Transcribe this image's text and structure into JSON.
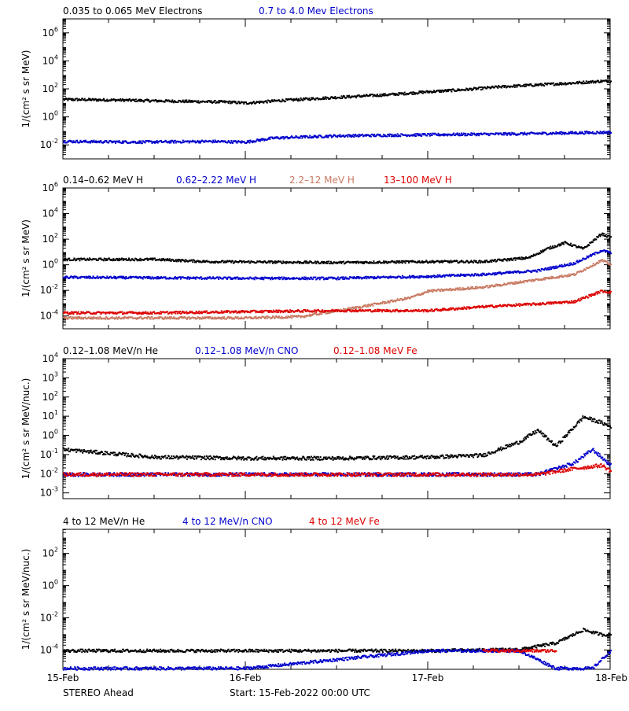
{
  "footer": {
    "mission": "STEREO Ahead",
    "start": "Start: 15-Feb-2022 00:00 UTC"
  },
  "x_axis": {
    "labels": [
      "15-Feb",
      "16-Feb",
      "17-Feb",
      "18-Feb"
    ]
  },
  "chart_data": [
    {
      "type": "scatter",
      "ylabel": "1/(cm² s sr MeV)",
      "y_scale": "log",
      "ylim_exp": [
        -3,
        7
      ],
      "tick_exps": [
        -2,
        0,
        2,
        4,
        6
      ],
      "x_range_days": [
        0,
        3
      ],
      "series": [
        {
          "name": "0.035 to 0.065 MeV Electrons",
          "color": "#000000",
          "points": [
            [
              0,
              20
            ],
            [
              0.3,
              18
            ],
            [
              0.6,
              15
            ],
            [
              0.9,
              13
            ],
            [
              1.0,
              11
            ],
            [
              1.2,
              17
            ],
            [
              1.5,
              28
            ],
            [
              1.8,
              45
            ],
            [
              2.0,
              70
            ],
            [
              2.2,
              100
            ],
            [
              2.4,
              160
            ],
            [
              2.6,
              220
            ],
            [
              2.8,
              300
            ],
            [
              2.95,
              400
            ],
            [
              3.0,
              400
            ]
          ]
        },
        {
          "name": "0.7 to 4.0 Mev Electrons",
          "color": "#0000cc",
          "points": [
            [
              0,
              0.02
            ],
            [
              0.4,
              0.018
            ],
            [
              0.8,
              0.02
            ],
            [
              1.0,
              0.018
            ],
            [
              1.15,
              0.035
            ],
            [
              1.5,
              0.05
            ],
            [
              2.0,
              0.06
            ],
            [
              2.5,
              0.07
            ],
            [
              3.0,
              0.09
            ]
          ]
        }
      ]
    },
    {
      "type": "scatter",
      "ylabel": "1/(cm² s sr MeV)",
      "y_scale": "log",
      "ylim_exp": [
        -5,
        6
      ],
      "tick_exps": [
        -4,
        -2,
        0,
        2,
        4,
        6
      ],
      "x_range_days": [
        0,
        3
      ],
      "series": [
        {
          "name": "0.14–0.62 MeV H",
          "color": "#000000",
          "points": [
            [
              0,
              3
            ],
            [
              0.5,
              3
            ],
            [
              0.8,
              2
            ],
            [
              1.5,
              1.7
            ],
            [
              2.0,
              2
            ],
            [
              2.3,
              2
            ],
            [
              2.55,
              4
            ],
            [
              2.65,
              20
            ],
            [
              2.75,
              60
            ],
            [
              2.85,
              20
            ],
            [
              2.95,
              300
            ],
            [
              3.0,
              150
            ]
          ]
        },
        {
          "name": "0.62–2.22 MeV H",
          "color": "#0000cc",
          "points": [
            [
              0,
              0.12
            ],
            [
              0.5,
              0.11
            ],
            [
              1.0,
              0.1
            ],
            [
              1.5,
              0.1
            ],
            [
              2.0,
              0.14
            ],
            [
              2.3,
              0.2
            ],
            [
              2.6,
              0.4
            ],
            [
              2.8,
              1.5
            ],
            [
              2.95,
              15
            ],
            [
              3.0,
              10
            ]
          ]
        },
        {
          "name": "2.2–12 MeV H",
          "color": "#c87a63",
          "points": [
            [
              0,
              8e-05
            ],
            [
              0.5,
              8e-05
            ],
            [
              1.0,
              8e-05
            ],
            [
              1.3,
              0.0001
            ],
            [
              1.6,
              0.0005
            ],
            [
              1.9,
              0.003
            ],
            [
              2.0,
              0.01
            ],
            [
              2.3,
              0.02
            ],
            [
              2.6,
              0.08
            ],
            [
              2.8,
              0.2
            ],
            [
              2.95,
              2.5
            ],
            [
              3.0,
              1.2
            ]
          ]
        },
        {
          "name": "13–100 MeV H",
          "color": "#dd0000",
          "points": [
            [
              0,
              0.0002
            ],
            [
              0.5,
              0.0002
            ],
            [
              1.0,
              0.00025
            ],
            [
              1.5,
              0.0003
            ],
            [
              2.0,
              0.0003
            ],
            [
              2.3,
              0.0006
            ],
            [
              2.6,
              0.001
            ],
            [
              2.8,
              0.0015
            ],
            [
              2.95,
              0.01
            ],
            [
              3.0,
              0.008
            ]
          ]
        }
      ]
    },
    {
      "type": "scatter",
      "ylabel": "1/(cm² s sr MeV/nuc.)",
      "y_scale": "log",
      "ylim_exp": [
        -3.3,
        4
      ],
      "tick_exps": [
        -3,
        -2,
        -1,
        0,
        1,
        2,
        3,
        4
      ],
      "x_range_days": [
        0,
        3
      ],
      "series": [
        {
          "name": "0.12–1.08 MeV/n He",
          "color": "#000000",
          "points": [
            [
              0,
              0.2
            ],
            [
              0.5,
              0.08
            ],
            [
              1.0,
              0.07
            ],
            [
              1.5,
              0.07
            ],
            [
              2.0,
              0.08
            ],
            [
              2.3,
              0.1
            ],
            [
              2.5,
              0.5
            ],
            [
              2.6,
              2
            ],
            [
              2.7,
              0.3
            ],
            [
              2.85,
              10
            ],
            [
              2.95,
              5
            ],
            [
              3.0,
              3
            ]
          ]
        },
        {
          "name": "0.12–1.08 MeV/n CNO",
          "color": "#0000cc",
          "points": [
            [
              0,
              0.01
            ],
            [
              1.0,
              0.01
            ],
            [
              2.0,
              0.01
            ],
            [
              2.6,
              0.01
            ],
            [
              2.8,
              0.04
            ],
            [
              2.9,
              0.2
            ],
            [
              3.0,
              0.03
            ]
          ]
        },
        {
          "name": "0.12–1.08 MeV Fe",
          "color": "#dd0000",
          "points": [
            [
              0,
              0.01
            ],
            [
              1.0,
              0.01
            ],
            [
              2.0,
              0.01
            ],
            [
              2.6,
              0.01
            ],
            [
              2.8,
              0.02
            ],
            [
              2.95,
              0.03
            ],
            [
              3.0,
              0.015
            ]
          ]
        }
      ]
    },
    {
      "type": "scatter",
      "ylabel": "1/(cm² s sr MeV/nuc.)",
      "y_scale": "log",
      "ylim_exp": [
        -5.2,
        3.5
      ],
      "tick_exps": [
        -4,
        -2,
        0,
        2
      ],
      "x_range_days": [
        0,
        3
      ],
      "series": [
        {
          "name": "4 to 12 MeV/n He",
          "color": "#000000",
          "points": [
            [
              0,
              0.0001
            ],
            [
              1.0,
              0.0001
            ],
            [
              2.0,
              0.0001
            ],
            [
              2.5,
              0.00012
            ],
            [
              2.7,
              0.0003
            ],
            [
              2.85,
              0.002
            ],
            [
              2.95,
              0.001
            ],
            [
              3.0,
              0.001
            ]
          ]
        },
        {
          "name": "4 to 12 MeV/n CNO",
          "color": "#0000cc",
          "points": [
            [
              0,
              8e-06
            ],
            [
              1.0,
              8e-06
            ],
            [
              2.0,
              0.0001
            ],
            [
              2.5,
              0.0001
            ],
            [
              2.7,
              8e-06
            ],
            [
              2.9,
              8e-06
            ],
            [
              3.0,
              0.0001
            ]
          ]
        },
        {
          "name": "4 to 12 MeV Fe",
          "color": "#dd0000",
          "points": [
            [
              2.3,
              0.0001
            ],
            [
              2.5,
              0.0001
            ],
            [
              2.7,
              0.0001
            ]
          ]
        }
      ]
    }
  ]
}
